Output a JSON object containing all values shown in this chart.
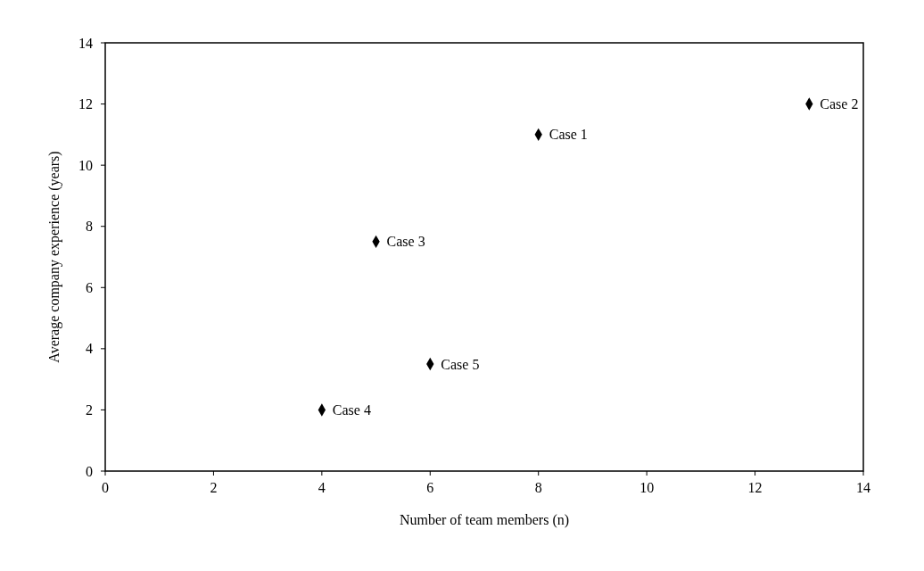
{
  "chart_data": {
    "type": "scatter",
    "xlabel": "Number of team members (n)",
    "ylabel": "Average company experience (years)",
    "x": [
      8,
      13,
      5,
      4,
      6
    ],
    "values": [
      11,
      12,
      7.5,
      2,
      3.5
    ],
    "color": "#000000",
    "marker": "diamond",
    "xlim": [
      0,
      14
    ],
    "xticks": [
      0,
      2,
      4,
      6,
      8,
      10,
      12,
      14
    ],
    "ylim": [
      0,
      14
    ],
    "yticks": [
      0,
      2,
      4,
      6,
      8,
      10,
      12,
      14
    ],
    "grid": false,
    "annotations": [
      {
        "text": "Case 1",
        "x": 8,
        "y": 11
      },
      {
        "text": "Case 2",
        "x": 13,
        "y": 12
      },
      {
        "text": "Case 3",
        "x": 5,
        "y": 7.5
      },
      {
        "text": "Case 4",
        "x": 4,
        "y": 2
      },
      {
        "text": "Case 5",
        "x": 6,
        "y": 3.5
      }
    ]
  }
}
